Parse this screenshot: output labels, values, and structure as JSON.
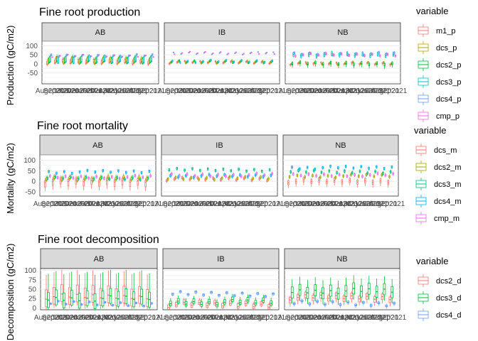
{
  "chart_data": [
    {
      "type": "boxplot",
      "title": "Fine root production",
      "ylabel": "Production (gC/m2)",
      "xlabel": "",
      "ylim": [
        -110,
        125
      ],
      "yticks": [
        100,
        50,
        0,
        -50
      ],
      "grid": true,
      "facets": [
        "AB",
        "IB",
        "NB"
      ],
      "legend": {
        "title": "variable",
        "placement": "right",
        "entries": [
          "m1_p",
          "dcs_p",
          "dcs2_p",
          "dcs3_p",
          "dcs4_p",
          "cmp_p"
        ]
      },
      "series_colors": [
        "#F8766D",
        "#B79F00",
        "#00BA38",
        "#00BFC4",
        "#619CFF",
        "#F564E3"
      ],
      "x_tick_labels": [
        "Aug2020",
        "Sep2020",
        "Oct2020",
        "Nov2020",
        "Dec2020",
        "Jan2021",
        "Feb2021",
        "Mar2021",
        "Apr2021",
        "May2021",
        "Jun2021",
        "Jul2021",
        "Aug2021",
        "Sep2021"
      ],
      "groups": [
        {
          "facet": "AB",
          "data": [
            [
              2,
              5,
              20,
              -5,
              30
            ],
            [
              4,
              8,
              30,
              0,
              40
            ],
            [
              6,
              10,
              35,
              5,
              45
            ],
            [
              8,
              12,
              40,
              6,
              48
            ],
            [
              40,
              45,
              50,
              38,
              52
            ],
            [
              42,
              44,
              46,
              40,
              48
            ]
          ]
        },
        {
          "facet": "IB",
          "data": [
            [
              5,
              8,
              12,
              0,
              15
            ],
            [
              6,
              9,
              14,
              2,
              18
            ],
            [
              8,
              10,
              16,
              4,
              20
            ],
            [
              10,
              12,
              18,
              5,
              22
            ],
            [
              56,
              58,
              60,
              55,
              62
            ],
            [
              58,
              60,
              62,
              57,
              64
            ]
          ]
        },
        {
          "facet": "NB",
          "data": [
            [
              0,
              2,
              5,
              -10,
              8
            ],
            [
              2,
              4,
              8,
              -5,
              10
            ],
            [
              -5,
              0,
              10,
              -20,
              15
            ],
            [
              40,
              50,
              60,
              35,
              65
            ],
            [
              50,
              55,
              60,
              45,
              65
            ],
            [
              45,
              50,
              55,
              40,
              60
            ]
          ]
        }
      ]
    },
    {
      "type": "boxplot",
      "title": "Fine root mortality",
      "ylabel": "Mortality (gC/m2)",
      "xlabel": "",
      "ylim": [
        -70,
        125
      ],
      "yticks": [
        100,
        50,
        0,
        -50
      ],
      "grid": true,
      "facets": [
        "AB",
        "IB",
        "NB"
      ],
      "legend": {
        "title": "variable",
        "placement": "right",
        "entries": [
          "dcs_m",
          "dcs2_m",
          "dcs3_m",
          "dcs4_m",
          "cmp_m"
        ]
      },
      "series_colors": [
        "#F8766D",
        "#A3A500",
        "#00BF7D",
        "#00B0F6",
        "#E76BF3"
      ],
      "x_tick_labels": [
        "Aug2020",
        "Sep2020",
        "Oct2020",
        "Nov2020",
        "Dec2020",
        "Jan2021",
        "Feb2021",
        "Mar2021",
        "Apr2021",
        "May2021",
        "Jun2021",
        "Jul2021",
        "Aug2021",
        "Sep2021"
      ],
      "groups": [
        {
          "facet": "AB",
          "data": [
            [
              -20,
              0,
              10,
              -40,
              20
            ],
            [
              5,
              10,
              20,
              0,
              30
            ],
            [
              10,
              15,
              20,
              5,
              28
            ],
            [
              40,
              45,
              50,
              35,
              52
            ],
            [
              15,
              20,
              25,
              10,
              30
            ]
          ]
        },
        {
          "facet": "IB",
          "data": [
            [
              5,
              10,
              15,
              0,
              20
            ],
            [
              10,
              15,
              20,
              5,
              25
            ],
            [
              50,
              55,
              60,
              45,
              62
            ],
            [
              20,
              25,
              30,
              15,
              35
            ],
            [
              25,
              30,
              35,
              20,
              40
            ]
          ]
        },
        {
          "facet": "NB",
          "data": [
            [
              -10,
              0,
              10,
              -25,
              15
            ],
            [
              20,
              25,
              30,
              15,
              35
            ],
            [
              40,
              45,
              50,
              35,
              55
            ],
            [
              60,
              65,
              70,
              55,
              72
            ],
            [
              25,
              30,
              35,
              20,
              40
            ]
          ]
        }
      ]
    },
    {
      "type": "boxplot",
      "title": "Fine root decomposition",
      "ylabel": "Decomposition (gC/m2)",
      "xlabel": "",
      "ylim": [
        -5,
        105
      ],
      "yticks": [
        100,
        75,
        50,
        25,
        0
      ],
      "grid": true,
      "facets": [
        "AB",
        "IB",
        "NB"
      ],
      "legend": {
        "title": "variable",
        "placement": "right",
        "entries": [
          "dcs2_d",
          "dcs3_d",
          "dcs4_d"
        ]
      },
      "series_colors": [
        "#F8766D",
        "#00BA38",
        "#619CFF"
      ],
      "x_tick_labels": [
        "Aug2020",
        "Sep2020",
        "Oct2020",
        "Nov2020",
        "Dec2020",
        "Jan2021",
        "Feb2021",
        "Mar2021",
        "Apr2021",
        "May2021",
        "Jun2021",
        "Jul2021",
        "Aug2021",
        "Sep2021"
      ],
      "groups": [
        {
          "facet": "AB",
          "data": [
            [
              10,
              30,
              55,
              0,
              95
            ],
            [
              5,
              25,
              45,
              0,
              95
            ],
            [
              10,
              12,
              14,
              8,
              16
            ]
          ]
        },
        {
          "facet": "IB",
          "data": [
            [
              3,
              8,
              15,
              0,
              20
            ],
            [
              10,
              15,
              22,
              5,
              30
            ],
            [
              35,
              38,
              40,
              32,
              42
            ]
          ]
        },
        {
          "facet": "NB",
          "data": [
            [
              20,
              28,
              35,
              10,
              40
            ],
            [
              30,
              45,
              60,
              15,
              80
            ],
            [
              10,
              12,
              15,
              5,
              18
            ]
          ]
        }
      ]
    }
  ]
}
